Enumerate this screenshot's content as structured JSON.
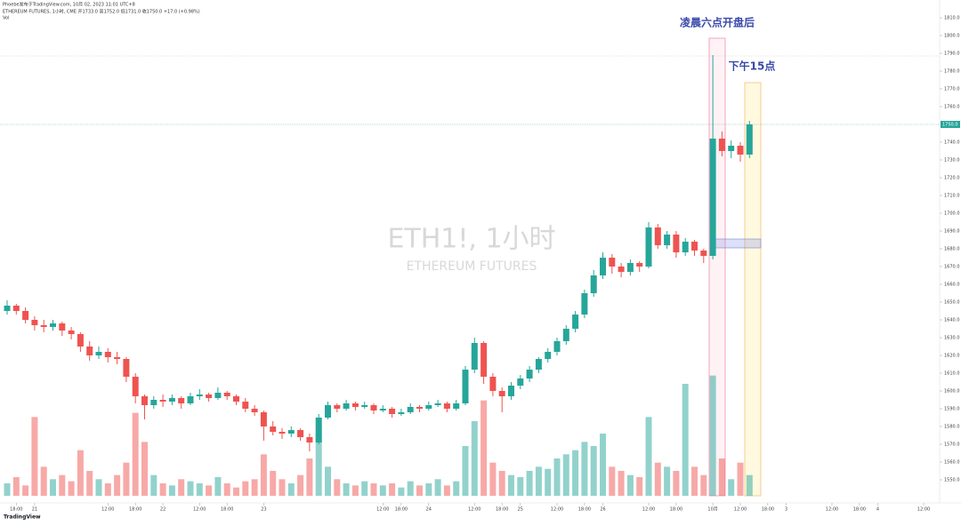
{
  "chart_data": {
    "type": "candlestick",
    "header": "Phoebe发布于TradingView.com, 10月 02, 2023 11:01 UTC+8",
    "symbol_line": "ETHEREUM FUTURES, 1小时, CME 开1733.0 高1752.0 低1731.0 收1750.0 +17.0 (+0.98%)",
    "volume_legend": "Vol",
    "watermark": "ETH1!, 1小时",
    "watermark_sub": "ETHEREUM FUTURES",
    "annotations": [
      "凌晨六点开盘后",
      "下午15点"
    ],
    "last_price_label": "1750.0",
    "footer": "TradingView",
    "up_color": "#26a69a",
    "down_color": "#ef5350",
    "ohlc": [
      [
        1645,
        1651,
        1643,
        1648
      ],
      [
        1648,
        1649,
        1643,
        1645
      ],
      [
        1645,
        1647,
        1638,
        1640
      ],
      [
        1640,
        1642,
        1634,
        1637
      ],
      [
        1637,
        1640,
        1633,
        1636
      ],
      [
        1636,
        1640,
        1634,
        1638
      ],
      [
        1638,
        1639,
        1631,
        1634
      ],
      [
        1634,
        1636,
        1629,
        1632
      ],
      [
        1632,
        1633,
        1622,
        1625
      ],
      [
        1625,
        1628,
        1617,
        1620
      ],
      [
        1620,
        1625,
        1618,
        1622
      ],
      [
        1622,
        1624,
        1616,
        1619
      ],
      [
        1619,
        1622,
        1615,
        1618
      ],
      [
        1618,
        1619,
        1605,
        1608
      ],
      [
        1608,
        1610,
        1593,
        1597
      ],
      [
        1597,
        1598,
        1584,
        1592
      ],
      [
        1592,
        1597,
        1590,
        1595
      ],
      [
        1595,
        1598,
        1591,
        1594
      ],
      [
        1594,
        1598,
        1592,
        1596
      ],
      [
        1596,
        1597,
        1590,
        1593
      ],
      [
        1593,
        1599,
        1592,
        1597
      ],
      [
        1597,
        1601,
        1595,
        1598
      ],
      [
        1598,
        1599,
        1594,
        1596
      ],
      [
        1596,
        1602,
        1595,
        1599
      ],
      [
        1599,
        1600,
        1595,
        1597
      ],
      [
        1597,
        1598,
        1592,
        1594
      ],
      [
        1594,
        1596,
        1588,
        1590
      ],
      [
        1590,
        1592,
        1586,
        1588
      ],
      [
        1588,
        1589,
        1572,
        1580
      ],
      [
        1580,
        1583,
        1575,
        1577
      ],
      [
        1577,
        1579,
        1573,
        1576
      ],
      [
        1576,
        1580,
        1574,
        1578
      ],
      [
        1578,
        1579,
        1572,
        1574
      ],
      [
        1574,
        1576,
        1566,
        1571
      ],
      [
        1571,
        1587,
        1570,
        1585
      ],
      [
        1585,
        1594,
        1584,
        1592
      ],
      [
        1592,
        1593,
        1588,
        1590
      ],
      [
        1590,
        1595,
        1589,
        1593
      ],
      [
        1593,
        1594,
        1589,
        1591
      ],
      [
        1591,
        1594,
        1590,
        1592
      ],
      [
        1592,
        1593,
        1587,
        1589
      ],
      [
        1589,
        1592,
        1588,
        1590
      ],
      [
        1590,
        1591,
        1585,
        1587
      ],
      [
        1587,
        1590,
        1586,
        1588
      ],
      [
        1588,
        1593,
        1587,
        1591
      ],
      [
        1591,
        1592,
        1588,
        1590
      ],
      [
        1590,
        1594,
        1589,
        1592
      ],
      [
        1592,
        1595,
        1591,
        1593
      ],
      [
        1593,
        1594,
        1588,
        1590
      ],
      [
        1590,
        1595,
        1589,
        1593
      ],
      [
        1593,
        1614,
        1592,
        1612
      ],
      [
        1612,
        1630,
        1610,
        1627
      ],
      [
        1627,
        1628,
        1604,
        1608
      ],
      [
        1608,
        1610,
        1597,
        1600
      ],
      [
        1600,
        1602,
        1588,
        1597
      ],
      [
        1597,
        1605,
        1595,
        1603
      ],
      [
        1603,
        1609,
        1601,
        1607
      ],
      [
        1607,
        1614,
        1605,
        1612
      ],
      [
        1612,
        1619,
        1610,
        1618
      ],
      [
        1618,
        1624,
        1616,
        1622
      ],
      [
        1622,
        1630,
        1620,
        1628
      ],
      [
        1628,
        1637,
        1626,
        1635
      ],
      [
        1635,
        1645,
        1633,
        1643
      ],
      [
        1643,
        1657,
        1641,
        1655
      ],
      [
        1655,
        1668,
        1653,
        1665
      ],
      [
        1665,
        1678,
        1663,
        1675
      ],
      [
        1675,
        1677,
        1666,
        1670
      ],
      [
        1670,
        1672,
        1664,
        1667
      ],
      [
        1667,
        1674,
        1665,
        1672
      ],
      [
        1672,
        1673,
        1667,
        1670
      ],
      [
        1670,
        1695,
        1669,
        1692
      ],
      [
        1692,
        1694,
        1680,
        1682
      ],
      [
        1682,
        1690,
        1680,
        1688
      ],
      [
        1688,
        1690,
        1675,
        1678
      ],
      [
        1678,
        1686,
        1676,
        1684
      ],
      [
        1684,
        1685,
        1676,
        1679
      ],
      [
        1679,
        1680,
        1672,
        1676
      ],
      [
        1676,
        1789,
        1674,
        1742
      ],
      [
        1742,
        1746,
        1732,
        1735
      ],
      [
        1735,
        1741,
        1731,
        1738
      ],
      [
        1738,
        1740,
        1729,
        1733
      ],
      [
        1733,
        1752,
        1731,
        1750
      ]
    ],
    "volume": [
      300,
      450,
      250,
      1900,
      700,
      400,
      500,
      350,
      1100,
      600,
      400,
      300,
      500,
      800,
      2000,
      1300,
      500,
      300,
      250,
      400,
      350,
      300,
      250,
      450,
      300,
      200,
      350,
      400,
      1000,
      600,
      400,
      300,
      500,
      900,
      1500,
      700,
      400,
      300,
      250,
      350,
      300,
      250,
      300,
      200,
      350,
      250,
      300,
      400,
      250,
      350,
      1200,
      1800,
      2300,
      800,
      600,
      500,
      450,
      600,
      700,
      650,
      900,
      1000,
      1100,
      1300,
      1200,
      1500,
      700,
      600,
      500,
      450,
      1900,
      800,
      700,
      600,
      2700,
      700,
      500,
      2900,
      900,
      400,
      800,
      500
    ],
    "vlim": [
      0,
      3000
    ],
    "ylim": [
      1541,
      1815
    ],
    "yticks": [
      {
        "value": 1550,
        "label": "1550.0"
      },
      {
        "value": 1560,
        "label": "1560.0"
      },
      {
        "value": 1570,
        "label": "1570.0"
      },
      {
        "value": 1580,
        "label": "1580.0"
      },
      {
        "value": 1590,
        "label": "1590.0"
      },
      {
        "value": 1600,
        "label": "1600.0"
      },
      {
        "value": 1610,
        "label": "1610.0"
      },
      {
        "value": 1620,
        "label": "1620.0"
      },
      {
        "value": 1630,
        "label": "1630.0"
      },
      {
        "value": 1640,
        "label": "1640.0"
      },
      {
        "value": 1650,
        "label": "1650.0"
      },
      {
        "value": 1660,
        "label": "1660.0"
      },
      {
        "value": 1670,
        "label": "1670.0"
      },
      {
        "value": 1680,
        "label": "1680.0"
      },
      {
        "value": 1690,
        "label": "1690.0"
      },
      {
        "value": 1700,
        "label": "1700.0"
      },
      {
        "value": 1710,
        "label": "1710.0"
      },
      {
        "value": 1720,
        "label": "1720.0"
      },
      {
        "value": 1730,
        "label": "1730.0"
      },
      {
        "value": 1740,
        "label": "1740.0"
      },
      {
        "value": 1760,
        "label": "1760.0"
      },
      {
        "value": 1770,
        "label": "1770.0"
      },
      {
        "value": 1780,
        "label": "1780.0"
      },
      {
        "value": 1790,
        "label": "1790.0"
      },
      {
        "value": 1800,
        "label": "1800.0"
      },
      {
        "value": 1810,
        "label": "1810.0"
      }
    ],
    "xticks": [
      {
        "value": 1,
        "label": "18:00"
      },
      {
        "value": 3,
        "label": "21"
      },
      {
        "value": 11,
        "label": "12:00"
      },
      {
        "value": 14,
        "label": "18:00"
      },
      {
        "value": 17,
        "label": "22"
      },
      {
        "value": 21,
        "label": "12:00"
      },
      {
        "value": 24,
        "label": "18:00"
      },
      {
        "value": 28,
        "label": "23"
      },
      {
        "value": 41,
        "label": "12:00"
      },
      {
        "value": 43,
        "label": "18:00"
      },
      {
        "value": 46,
        "label": "24"
      },
      {
        "value": 51,
        "label": "12:00"
      },
      {
        "value": 54,
        "label": "18:00"
      },
      {
        "value": 56,
        "label": "25"
      },
      {
        "value": 60,
        "label": "12:00"
      },
      {
        "value": 63,
        "label": "18:00"
      },
      {
        "value": 65,
        "label": "26"
      },
      {
        "value": 70,
        "label": "12:00"
      },
      {
        "value": 73,
        "label": "18:00"
      },
      {
        "value": 77,
        "label": "10月"
      },
      {
        "value": 80,
        "label": "12:00"
      },
      {
        "value": 83,
        "label": "18:00"
      },
      {
        "value": 85,
        "label": "3"
      },
      {
        "value": 90,
        "label": "12:00"
      },
      {
        "value": 93,
        "label": "18:00"
      },
      {
        "value": 95,
        "label": "4"
      },
      {
        "value": 100,
        "label": "12:00"
      }
    ]
  }
}
